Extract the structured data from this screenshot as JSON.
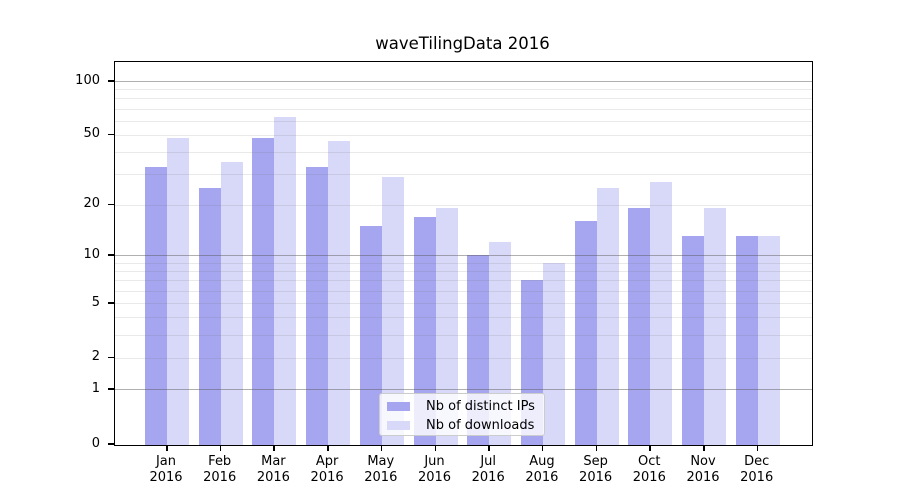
{
  "title": "waveTilingData 2016",
  "chart_data": {
    "type": "bar",
    "title": "waveTilingData 2016",
    "categories": [
      "Jan",
      "Feb",
      "Mar",
      "Apr",
      "May",
      "Jun",
      "Jul",
      "Aug",
      "Sep",
      "Oct",
      "Nov",
      "Dec"
    ],
    "category_year": "2016",
    "series": [
      {
        "name": "Nb of distinct IPs",
        "color": "#a5a5f0",
        "values": [
          33,
          25,
          48,
          33,
          15,
          17,
          10,
          7,
          16,
          19,
          13,
          13
        ]
      },
      {
        "name": "Nb of downloads",
        "color": "#d8d8f8",
        "values": [
          48,
          35,
          63,
          46,
          29,
          19,
          12,
          9,
          25,
          27,
          19,
          13
        ]
      }
    ],
    "xlabel": "",
    "ylabel": "",
    "yscale": "log10(1+v)",
    "ylim": [
      0,
      127
    ],
    "y_ticks": [
      100,
      50,
      20,
      10,
      5,
      2,
      1,
      0
    ],
    "grid_major_values": [
      1,
      10,
      100
    ],
    "grid_minor_values": [
      2,
      3,
      4,
      5,
      6,
      7,
      8,
      9,
      20,
      30,
      40,
      50,
      60,
      70,
      80,
      90
    ],
    "legend_position": "lower center",
    "colors": {
      "distinct_ips": "#a5a5f0",
      "downloads": "#d8d8f8",
      "grid_major": "#b3b3b3",
      "grid_minor": "#e6e6e6",
      "axis": "#000000",
      "legend_border": "#cccccc"
    }
  }
}
